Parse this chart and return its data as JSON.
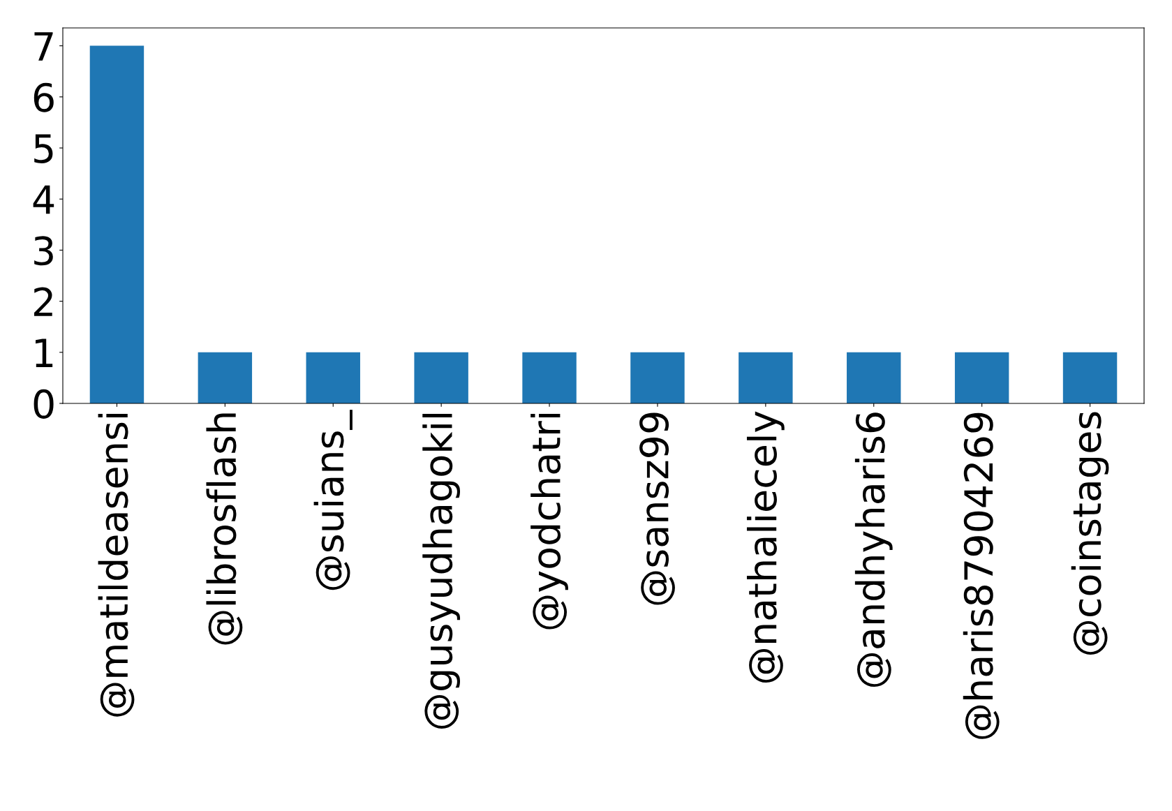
{
  "chart_data": {
    "type": "bar",
    "categories": [
      "@matildeasensi",
      "@librosflash",
      "@suians_",
      "@gusyudhagokil",
      "@yodchatri",
      "@sansz99",
      "@nathaliecely",
      "@andhyharis6",
      "@haris87904269",
      "@coinstages"
    ],
    "values": [
      7,
      1,
      1,
      1,
      1,
      1,
      1,
      1,
      1,
      1
    ],
    "color": "#1f77b4",
    "ylim": [
      0,
      7.35
    ],
    "yticks": [
      0,
      1,
      2,
      3,
      4,
      5,
      6,
      7
    ],
    "grid": false
  }
}
